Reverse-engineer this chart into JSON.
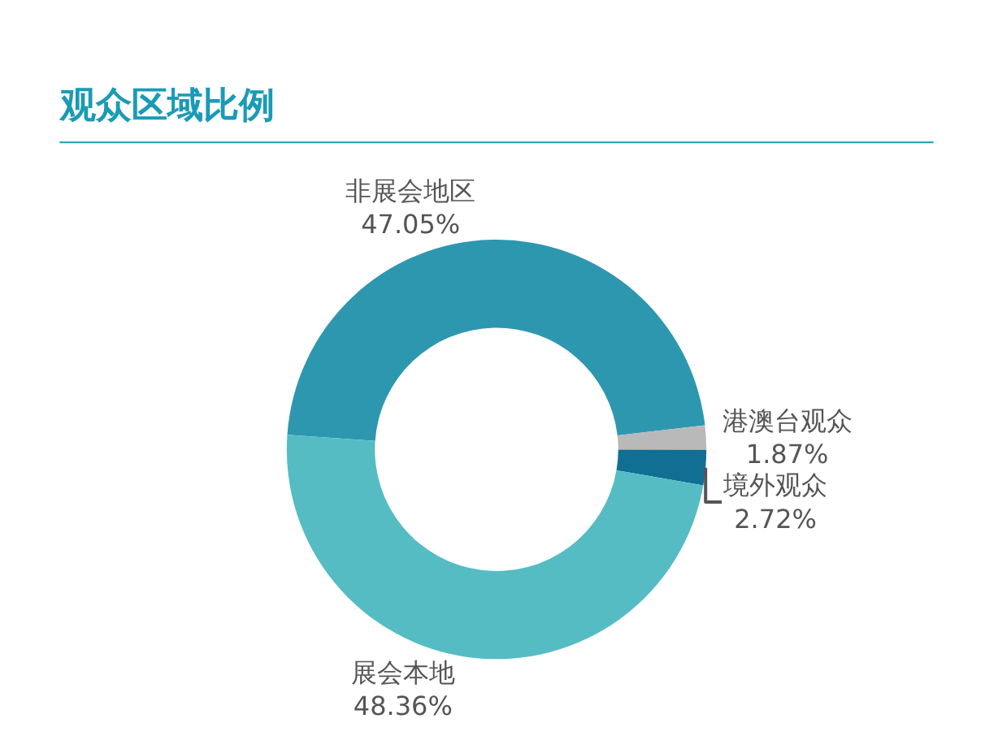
{
  "chart_data": {
    "type": "donut",
    "title": "观众区域比例",
    "categories": [
      "非展会地区",
      "港澳台观众",
      "境外观众",
      "展会本地"
    ],
    "values": [
      47.05,
      1.87,
      2.72,
      48.36
    ],
    "value_labels": [
      "47.05%",
      "1.87%",
      "2.72%",
      "48.36%"
    ],
    "colors": [
      "#2e97b0",
      "#b9b9b9",
      "#106f93",
      "#55bcc4"
    ],
    "legend": false
  }
}
